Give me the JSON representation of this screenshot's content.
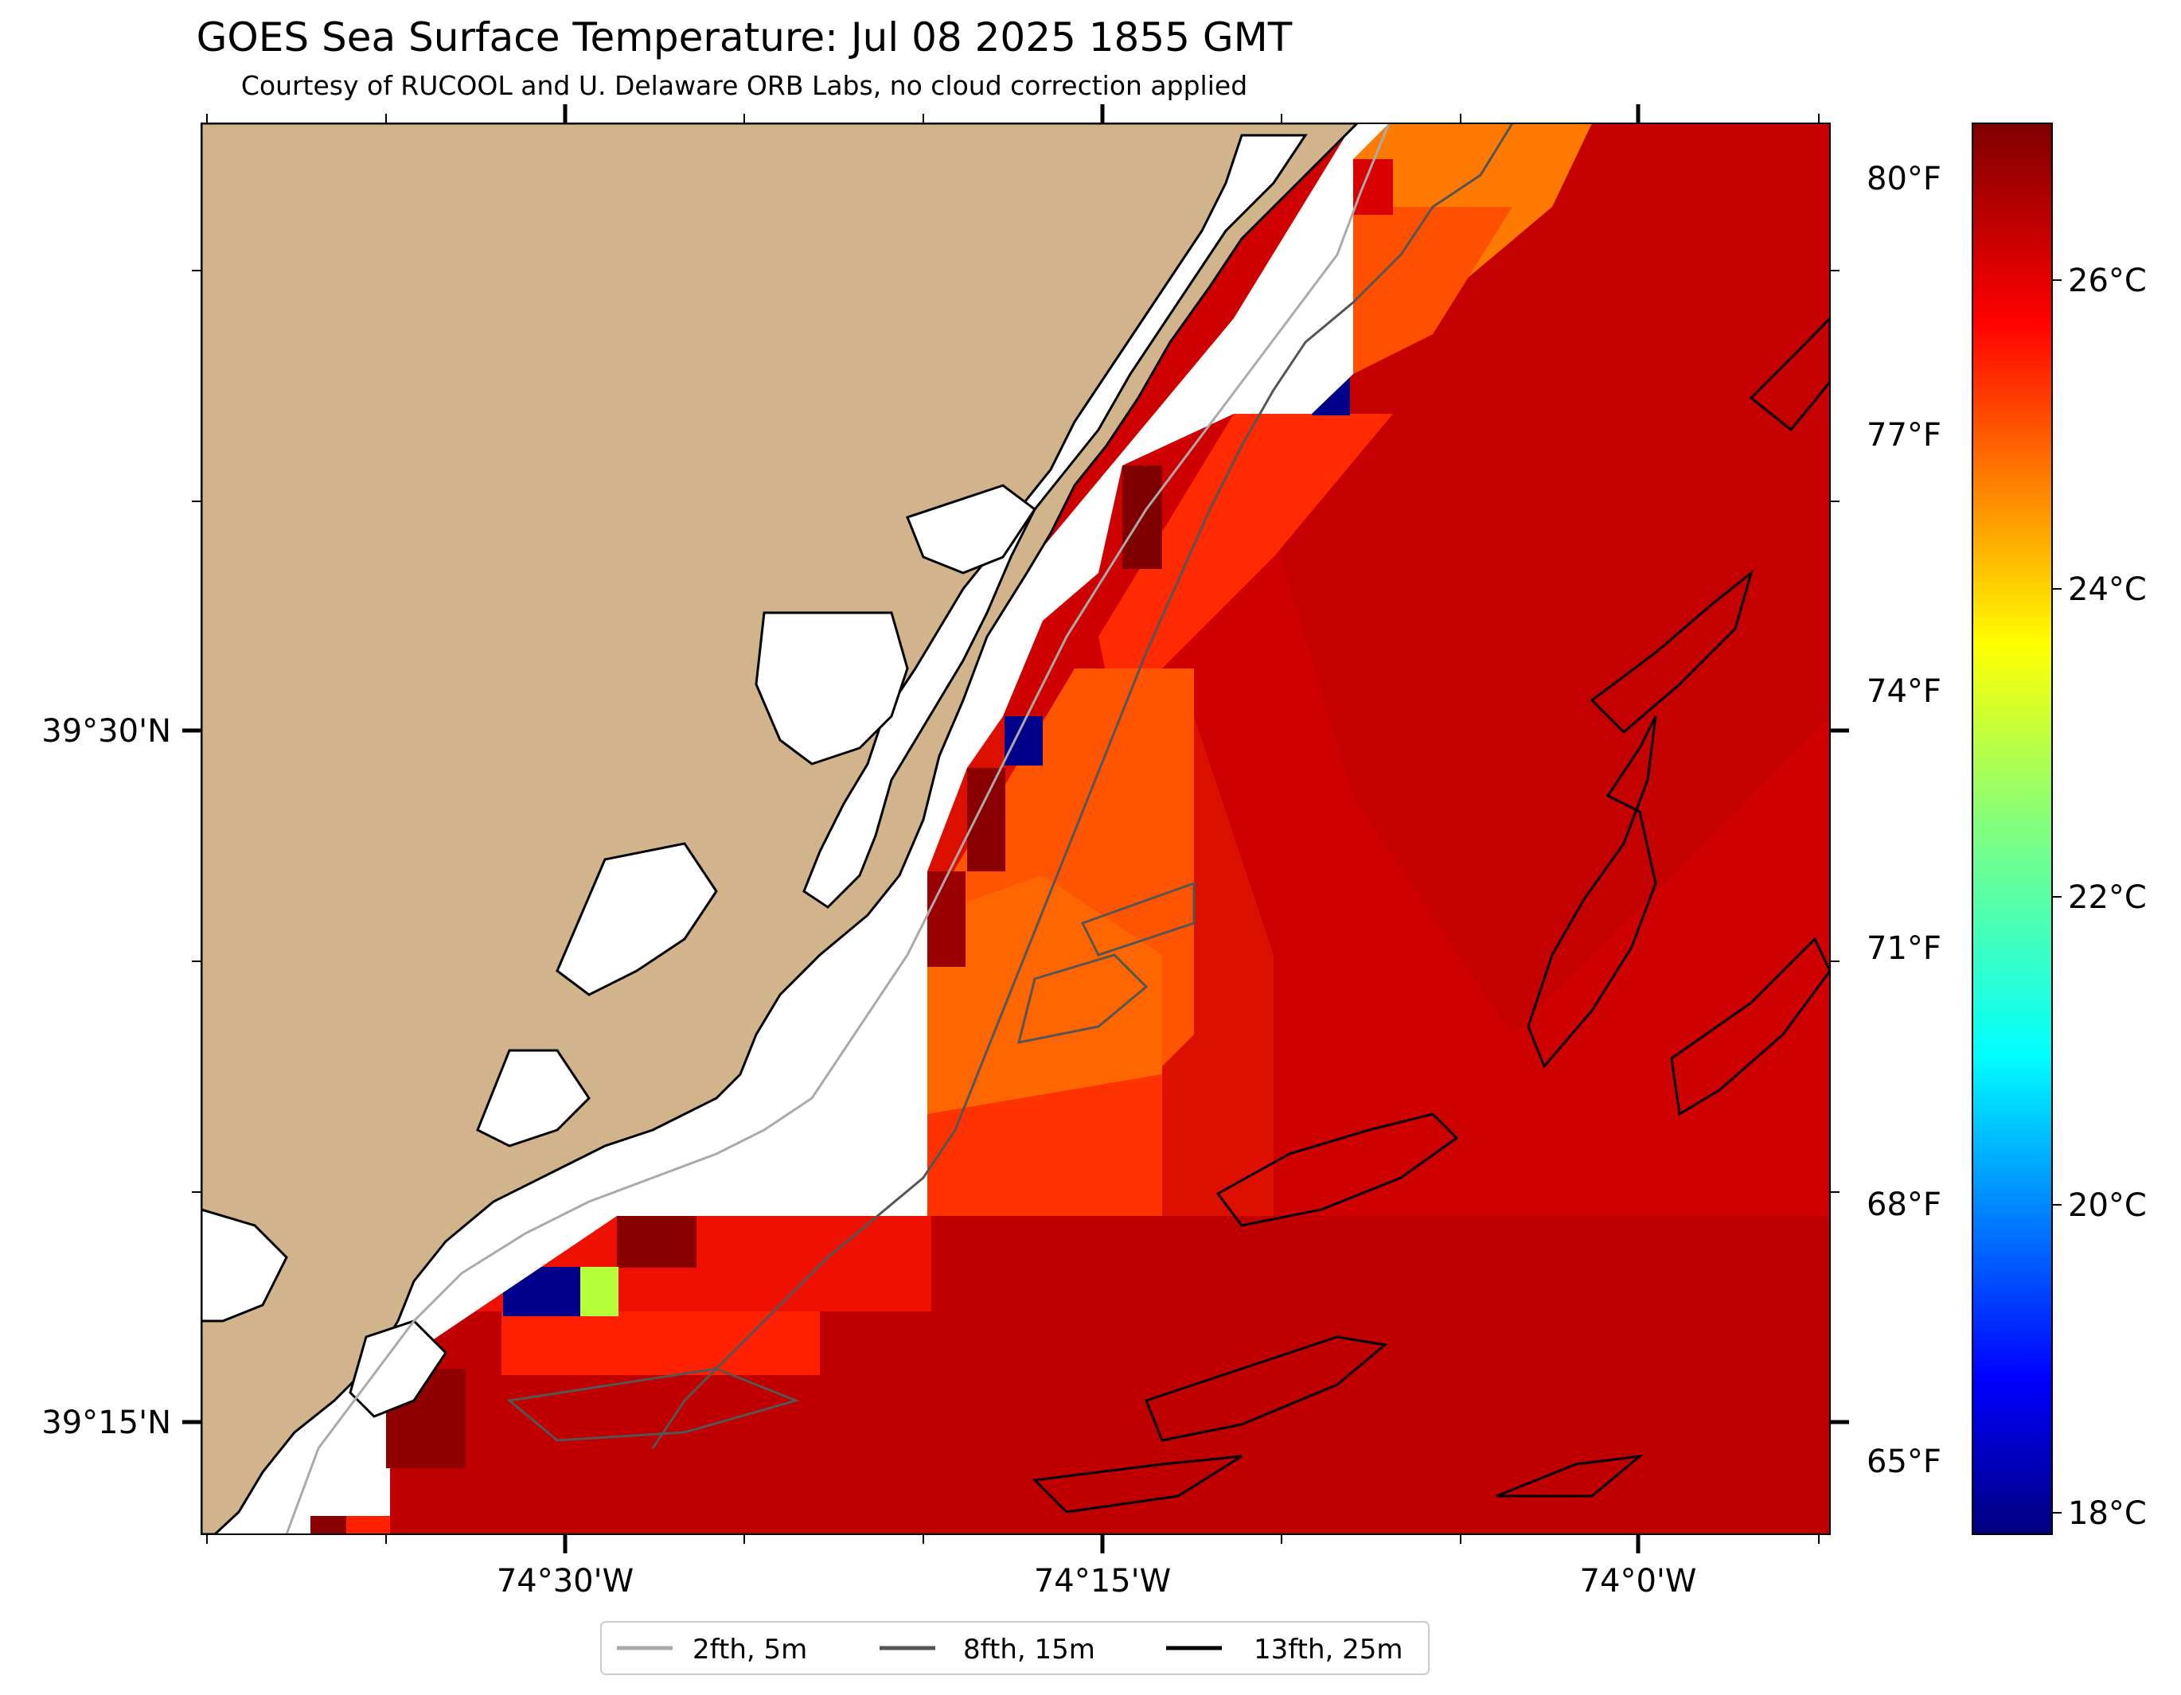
{
  "title": "GOES Sea Surface Temperature: Jul 08 2025 1855 GMT",
  "subtitle": "Courtesy of RUCOOL and U. Delaware ORB Labs, no cloud correction applied",
  "axes": {
    "lon_labels": [
      "74°30'W",
      "74°15'W",
      "74°0'W"
    ],
    "lat_labels": [
      "39°30'N",
      "39°15'N"
    ]
  },
  "colorbar": {
    "celsius_labels": [
      "26°C",
      "24°C",
      "22°C",
      "20°C",
      "18°C"
    ],
    "fahrenheit_labels": [
      "80°F",
      "77°F",
      "74°F",
      "71°F",
      "68°F",
      "65°F"
    ],
    "colormap": "jet",
    "range_c": [
      17.9,
      27.3
    ]
  },
  "legend": {
    "placement": "bottom-center",
    "items": [
      {
        "label": "2fth, 5m",
        "color": "#aaaaaa"
      },
      {
        "label": "8fth, 15m",
        "color": "#555555"
      },
      {
        "label": "13fth, 25m",
        "color": "#000000"
      }
    ]
  },
  "colors": {
    "land": "#d2b48c",
    "ocean_nodata": "#ffffff"
  }
}
